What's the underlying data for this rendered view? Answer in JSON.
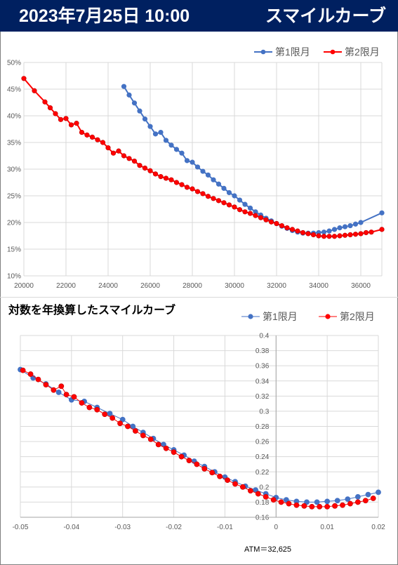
{
  "header": {
    "date": "2023年7月25日 10:00",
    "title": "スマイルカーブ"
  },
  "chart2_title": "対数を年換算したスマイルカーブ",
  "atm_label": "ATM＝32,625",
  "colors": {
    "series1": "#4472c4",
    "series2": "#ff0000",
    "header_bg": "#002060",
    "grid": "#d9d9d9"
  },
  "chart_data": [
    {
      "type": "line",
      "title": "",
      "xlabel": "",
      "ylabel": "",
      "xlim": [
        20000,
        37000
      ],
      "ylim": [
        0.1,
        0.5
      ],
      "x_ticks": [
        "20000",
        "22000",
        "24000",
        "26000",
        "28000",
        "30000",
        "32000",
        "34000",
        "36000"
      ],
      "y_ticks": [
        "10%",
        "15%",
        "20%",
        "25%",
        "30%",
        "35%",
        "40%",
        "45%",
        "50%"
      ],
      "legend_position": "top-right",
      "grid": true,
      "series": [
        {
          "name": "第1限月",
          "x": [
            24750,
            25000,
            25250,
            25500,
            25750,
            26000,
            26250,
            26500,
            26750,
            27000,
            27250,
            27500,
            27750,
            28000,
            28250,
            28500,
            28750,
            29000,
            29250,
            29500,
            29750,
            30000,
            30250,
            30500,
            30750,
            31000,
            31250,
            31500,
            31750,
            32000,
            32250,
            32500,
            32750,
            33000,
            33250,
            33500,
            33750,
            34000,
            34250,
            34500,
            34750,
            35000,
            35250,
            35500,
            35750,
            36000,
            37000
          ],
          "values": [
            0.455,
            0.439,
            0.424,
            0.409,
            0.394,
            0.38,
            0.366,
            0.369,
            0.354,
            0.345,
            0.337,
            0.33,
            0.316,
            0.313,
            0.304,
            0.296,
            0.289,
            0.28,
            0.272,
            0.264,
            0.256,
            0.25,
            0.242,
            0.234,
            0.227,
            0.22,
            0.214,
            0.208,
            0.203,
            0.198,
            0.193,
            0.189,
            0.185,
            0.182,
            0.18,
            0.18,
            0.18,
            0.181,
            0.182,
            0.184,
            0.187,
            0.19,
            0.192,
            0.194,
            0.197,
            0.2,
            0.218
          ]
        },
        {
          "name": "第2限月",
          "x": [
            20000,
            20500,
            21000,
            21250,
            21500,
            21750,
            22000,
            22250,
            22500,
            22750,
            23000,
            23250,
            23500,
            23750,
            24000,
            24250,
            24500,
            24750,
            25000,
            25250,
            25500,
            25750,
            26000,
            26250,
            26500,
            26750,
            27000,
            27250,
            27500,
            27750,
            28000,
            28250,
            28500,
            28750,
            29000,
            29250,
            29500,
            29750,
            30000,
            30250,
            30500,
            30750,
            31000,
            31250,
            31500,
            31750,
            32000,
            32250,
            32500,
            32750,
            33000,
            33250,
            33500,
            33750,
            34000,
            34250,
            34500,
            34750,
            35000,
            35250,
            35500,
            35750,
            36000,
            36250,
            36500,
            37000
          ],
          "values": [
            0.47,
            0.447,
            0.426,
            0.415,
            0.404,
            0.393,
            0.395,
            0.383,
            0.386,
            0.369,
            0.364,
            0.36,
            0.355,
            0.35,
            0.34,
            0.33,
            0.334,
            0.325,
            0.32,
            0.315,
            0.307,
            0.302,
            0.297,
            0.291,
            0.286,
            0.283,
            0.28,
            0.275,
            0.271,
            0.266,
            0.263,
            0.258,
            0.254,
            0.249,
            0.245,
            0.241,
            0.237,
            0.233,
            0.229,
            0.224,
            0.22,
            0.217,
            0.213,
            0.209,
            0.205,
            0.201,
            0.198,
            0.194,
            0.19,
            0.187,
            0.184,
            0.181,
            0.179,
            0.177,
            0.175,
            0.174,
            0.174,
            0.174,
            0.175,
            0.176,
            0.177,
            0.178,
            0.179,
            0.181,
            0.182,
            0.187
          ]
        }
      ]
    },
    {
      "type": "scatter",
      "title": "対数を年換算したスマイルカーブ",
      "xlabel": "",
      "ylabel": "",
      "xlim": [
        -0.05,
        0.02
      ],
      "ylim": [
        0.16,
        0.4
      ],
      "x_ticks": [
        "-0.05",
        "-0.04",
        "-0.03",
        "-0.02",
        "-0.01",
        "0",
        "0.01",
        "0.02"
      ],
      "y_ticks": [
        "0.16",
        "0.18",
        "0.2",
        "0.22",
        "0.24",
        "0.26",
        "0.28",
        "0.3",
        "0.32",
        "0.34",
        "0.36",
        "0.38",
        "0.4"
      ],
      "legend_position": "top-right",
      "grid": true,
      "series": [
        {
          "name": "第1限月",
          "x": [
            -0.05,
            -0.0475,
            -0.045,
            -0.0425,
            -0.04,
            -0.0375,
            -0.035,
            -0.0325,
            -0.03,
            -0.028,
            -0.026,
            -0.024,
            -0.022,
            -0.02,
            -0.018,
            -0.016,
            -0.014,
            -0.012,
            -0.01,
            -0.008,
            -0.006,
            -0.004,
            -0.002,
            0.0,
            0.002,
            0.004,
            0.006,
            0.008,
            0.01,
            0.012,
            0.014,
            0.016,
            0.018,
            0.02
          ],
          "values": [
            0.355,
            0.344,
            0.336,
            0.325,
            0.315,
            0.313,
            0.305,
            0.297,
            0.289,
            0.28,
            0.272,
            0.264,
            0.256,
            0.249,
            0.242,
            0.234,
            0.227,
            0.22,
            0.213,
            0.207,
            0.201,
            0.196,
            0.191,
            0.186,
            0.183,
            0.181,
            0.18,
            0.18,
            0.181,
            0.182,
            0.184,
            0.187,
            0.19,
            0.193
          ]
        },
        {
          "name": "第2限月",
          "x": [
            -0.0495,
            -0.048,
            -0.0465,
            -0.045,
            -0.0435,
            -0.042,
            -0.041,
            -0.0395,
            -0.038,
            -0.0365,
            -0.035,
            -0.0335,
            -0.032,
            -0.0305,
            -0.029,
            -0.0275,
            -0.026,
            -0.0245,
            -0.023,
            -0.0215,
            -0.02,
            -0.0185,
            -0.017,
            -0.0155,
            -0.014,
            -0.0125,
            -0.011,
            -0.0095,
            -0.008,
            -0.0065,
            -0.005,
            -0.0035,
            -0.002,
            -0.0005,
            0.001,
            0.0025,
            0.004,
            0.0055,
            0.007,
            0.0085,
            0.01,
            0.0115,
            0.013,
            0.0145,
            0.016,
            0.0175,
            0.019
          ],
          "values": [
            0.354,
            0.349,
            0.342,
            0.335,
            0.328,
            0.333,
            0.322,
            0.319,
            0.311,
            0.305,
            0.302,
            0.296,
            0.291,
            0.284,
            0.28,
            0.274,
            0.268,
            0.263,
            0.256,
            0.251,
            0.246,
            0.24,
            0.235,
            0.23,
            0.224,
            0.219,
            0.214,
            0.209,
            0.204,
            0.2,
            0.195,
            0.191,
            0.187,
            0.183,
            0.18,
            0.178,
            0.176,
            0.175,
            0.174,
            0.174,
            0.174,
            0.175,
            0.176,
            0.178,
            0.18,
            0.182,
            0.185
          ]
        }
      ]
    }
  ]
}
